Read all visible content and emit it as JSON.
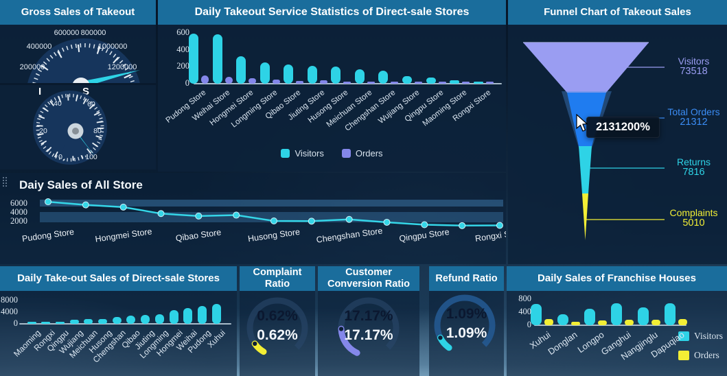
{
  "theme": {
    "header_bg": "#1a6d9c",
    "panel_bg": "rgba(13,34,58,0.88)",
    "panel_bg_light": "rgba(12,32,56,0.62)",
    "cyan": "#2ed3e6",
    "purple": "#8487ea",
    "yellow": "#f2ee35",
    "blue": "#1f7cf0",
    "funnel_purple": "#9a9df2"
  },
  "panels": {
    "kpis": [
      {
        "title": "Complaint Ratio",
        "value": "0.62%"
      },
      {
        "title": "Customer Conversion Ratio",
        "value": "17.17%"
      },
      {
        "title": "Refund Ratio",
        "value": "1.09%"
      }
    ]
  },
  "chart_data": [
    {
      "id": "service_stats",
      "type": "bar",
      "title": "Daily Takeout Service Statistics of Direct-sale Stores",
      "categories": [
        "Pudong Store",
        "Weihai Store",
        "Hongmei Store",
        "Longming Store",
        "Qibao Store",
        "Jiuting Store",
        "Husong Store",
        "Meichuan Store",
        "Chengshan Store",
        "Wujiang Store",
        "Qingpu Store",
        "Maoming Store",
        "Rongxi Store"
      ],
      "series": [
        {
          "name": "Visitors",
          "color": "#2ed3e6",
          "values": [
            595,
            585,
            325,
            255,
            225,
            210,
            200,
            170,
            155,
            90,
            75,
            40,
            25
          ]
        },
        {
          "name": "Orders",
          "color": "#8487ea",
          "values": [
            100,
            80,
            65,
            45,
            35,
            40,
            20,
            25,
            25,
            20,
            15,
            20,
            12
          ]
        }
      ],
      "ylim": [
        0,
        600
      ],
      "yticks": [
        0,
        200,
        400,
        600
      ],
      "legend_position": "bottom"
    },
    {
      "id": "funnel_takeout",
      "type": "funnel",
      "title": "Funnel Chart of Takeout Sales",
      "stages": [
        {
          "label": "Visitors",
          "value": 73518,
          "color": "#9a9df2"
        },
        {
          "label": "Total Orders",
          "value": 21312,
          "color": "#3b8df5"
        },
        {
          "label": "Returns",
          "value": 7816,
          "color": "#2ed3e6"
        },
        {
          "label": "Complaints",
          "value": 5010,
          "color": "#f2ee35"
        }
      ],
      "tooltip": "2131200%"
    },
    {
      "id": "daily_all_stores",
      "type": "line",
      "title": "Daiy Sales of All Store",
      "categories": [
        "Pudong Store",
        "Weihai Store",
        "Hongmei Store",
        "Longming Store",
        "Qibao Store",
        "Jiuting Store",
        "Husong Store",
        "Meichuan Store",
        "Chengshan Store",
        "Wujiang Store",
        "Qingpu Store",
        "Maoming Store",
        "Rongxi Store"
      ],
      "visible_tick_labels": [
        "Pudong Store",
        "Hongmei Store",
        "Qibao Store",
        "Husong Store",
        "Chengshan Store",
        "Qingpu Store",
        "Rongxi Store"
      ],
      "values": [
        6300,
        5600,
        5100,
        3650,
        3100,
        3300,
        2000,
        1950,
        2350,
        1700,
        1150,
        950,
        1000
      ],
      "yticks": [
        2000,
        4000,
        6000
      ],
      "color": "#35d6e8",
      "grid_bands": true
    },
    {
      "id": "direct_sale_sales",
      "type": "bar",
      "title": "Daily Take-out Sales of Direct-sale Stores",
      "categories": [
        "Maoming",
        "Rongxi",
        "Qingpu",
        "Wujiang",
        "Meichuan",
        "Husong",
        "Chengshan",
        "Qibao",
        "Jiuting",
        "Longming",
        "Hongmei",
        "Weihai",
        "Pudong",
        "Xuhui"
      ],
      "values": [
        300,
        350,
        700,
        1300,
        1750,
        1750,
        2300,
        2800,
        3100,
        3400,
        4700,
        5500,
        6200,
        6800
      ],
      "yticks": [
        0,
        4000,
        8000
      ],
      "color": "#2ed3e6"
    },
    {
      "id": "franchise_sales",
      "type": "bar",
      "title": "Daily Sales of Franchise Houses",
      "categories": [
        "Xuhui",
        "Donglan",
        "Longpo",
        "Ganghui",
        "Nangjinglu",
        "Dapuqiao"
      ],
      "series": [
        {
          "name": "Visitors",
          "color": "#2ed3e6",
          "values": [
            650,
            340,
            510,
            680,
            545,
            680
          ]
        },
        {
          "name": "Orders",
          "color": "#f2ee35",
          "values": [
            185,
            110,
            140,
            160,
            160,
            200
          ]
        }
      ],
      "yticks": [
        0,
        400,
        800
      ],
      "legend_position": "right"
    },
    {
      "id": "gross_sales_gauge",
      "type": "gauge",
      "title": "Gross Sales of Takeout",
      "tick_labels": [
        "200000",
        "400000",
        "600000",
        "800000",
        "1000000",
        "1200000"
      ]
    },
    {
      "id": "small_gauge",
      "type": "gauge",
      "occluded_title_fragments": {
        "left": "I",
        "right": "S"
      },
      "tick_labels": [
        "0",
        "20",
        "40",
        "60",
        "80",
        "100"
      ]
    }
  ]
}
